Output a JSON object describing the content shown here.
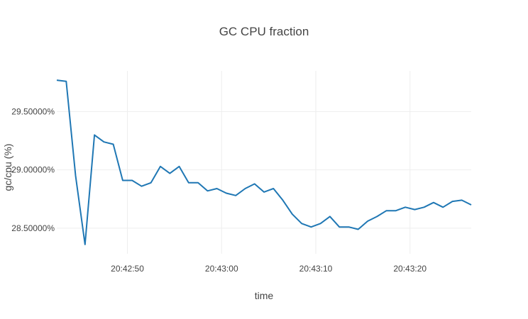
{
  "chart_data": {
    "type": "line",
    "title": "GC CPU fraction",
    "xlabel": "time",
    "ylabel": "gc/cpu (%)",
    "x_ticks": [
      "20:42:50",
      "20:43:00",
      "20:43:10",
      "20:43:20"
    ],
    "y_ticks": [
      "28.50000%",
      "29.00000%",
      "29.50000%"
    ],
    "y_tick_values": [
      28.5,
      29.0,
      29.5
    ],
    "x_tick_values": [
      20.0,
      30.0,
      40.0,
      50.0
    ],
    "xlim": [
      12.5,
      56.5
    ],
    "ylim": [
      28.28,
      29.85
    ],
    "grid": true,
    "series": [
      {
        "color": "#1f77b4",
        "x": [
          12.5,
          13.5,
          14.5,
          15.5,
          16.5,
          17.5,
          18.5,
          19.5,
          20.5,
          21.5,
          22.5,
          23.5,
          24.5,
          25.5,
          26.5,
          27.5,
          28.5,
          29.5,
          30.5,
          31.5,
          32.5,
          33.5,
          34.5,
          35.5,
          36.5,
          37.5,
          38.5,
          39.5,
          40.5,
          41.5,
          42.5,
          43.5,
          44.5,
          45.5,
          46.5,
          47.5,
          48.5,
          49.5,
          50.5,
          51.5,
          52.5,
          53.5,
          54.5,
          55.5,
          56.5
        ],
        "y": [
          29.77,
          29.76,
          28.95,
          28.36,
          29.3,
          29.24,
          29.22,
          28.91,
          28.91,
          28.86,
          28.89,
          29.03,
          28.97,
          29.03,
          28.89,
          28.89,
          28.82,
          28.84,
          28.8,
          28.78,
          28.84,
          28.88,
          28.81,
          28.84,
          28.74,
          28.62,
          28.54,
          28.51,
          28.54,
          28.6,
          28.51,
          28.51,
          28.49,
          28.56,
          28.6,
          28.65,
          28.65,
          28.68,
          28.66,
          28.68,
          28.72,
          28.68,
          28.73,
          28.74,
          28.7
        ]
      }
    ]
  }
}
